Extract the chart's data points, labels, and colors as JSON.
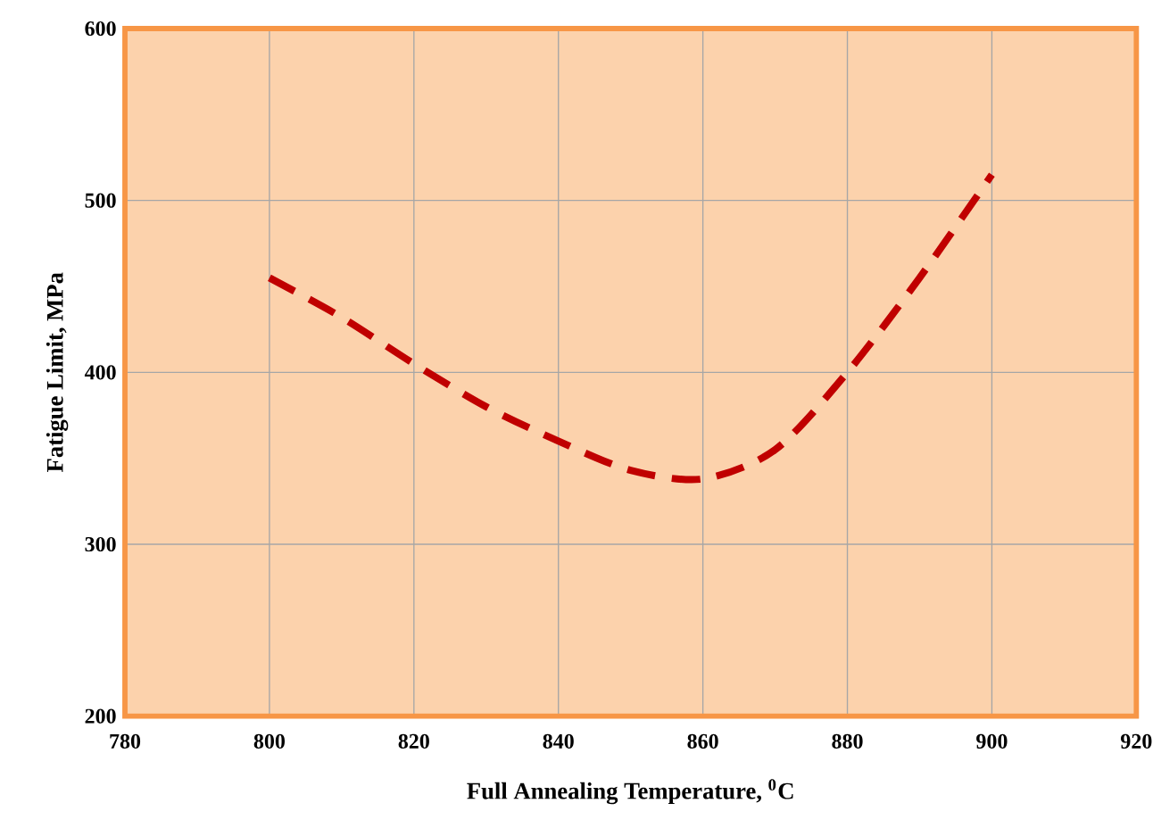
{
  "chart_data": {
    "type": "line",
    "xlabel": "Full Annealing Temperature, $^{0}$C",
    "ylabel": "Fatigue Limit, MPa",
    "x": [
      800,
      810,
      820,
      830,
      840,
      850,
      860,
      870,
      880,
      890,
      900
    ],
    "series": [
      {
        "color": "#c00000",
        "line_style": "dashed",
        "values": [
          455,
          432,
          405,
          380,
          360,
          343,
          338,
          355,
          400,
          455,
          515
        ]
      }
    ],
    "xlim": [
      780,
      920
    ],
    "xticks": [
      780,
      800,
      820,
      840,
      860,
      880,
      900,
      920
    ],
    "ylim": [
      200,
      600
    ],
    "yticks": [
      200,
      300,
      400,
      500,
      600
    ],
    "grid": true
  }
}
